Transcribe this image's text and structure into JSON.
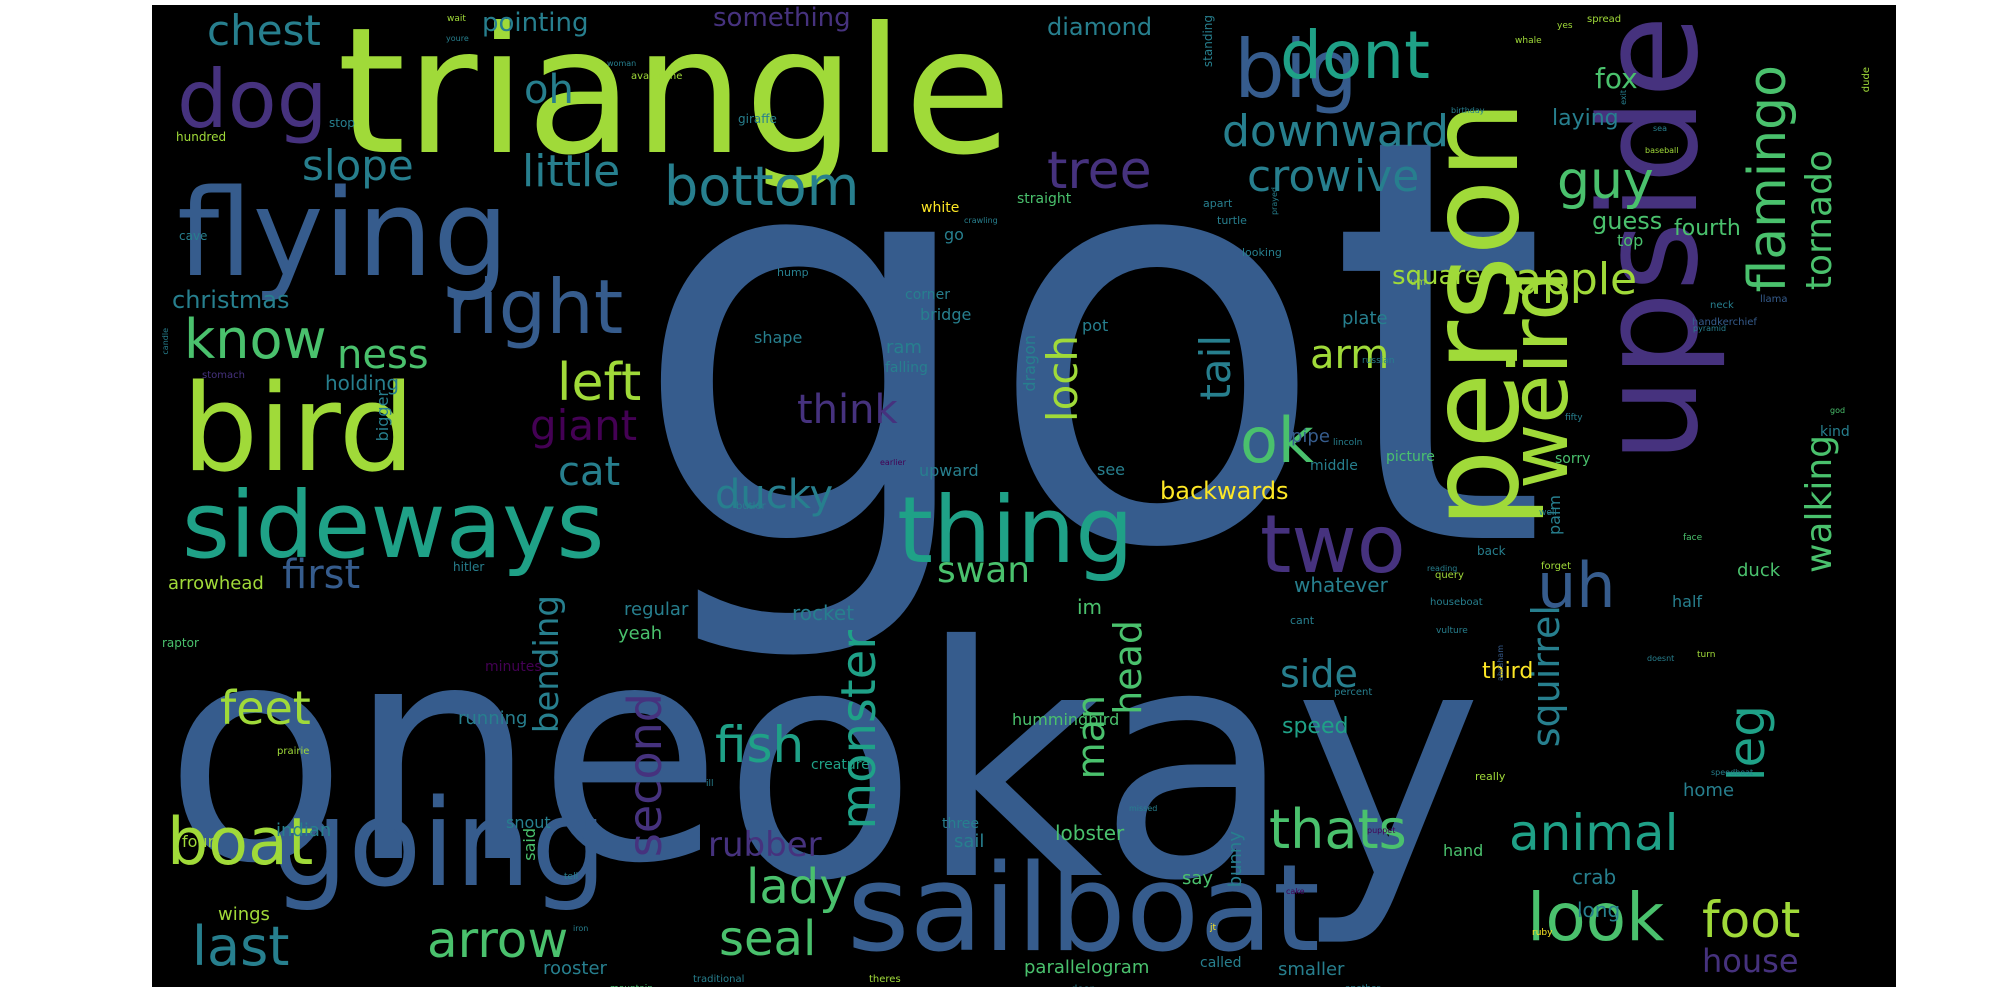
{
  "background_color": "#000000",
  "palette": [
    "#440154",
    "#46327e",
    "#365c8d",
    "#277f8e",
    "#1fa187",
    "#4ac16d",
    "#a0da39",
    "#fde725"
  ],
  "words": [
    {
      "text": "got",
      "color": "#365c8d"
    },
    {
      "text": "one",
      "color": "#365c8d"
    },
    {
      "text": "okay",
      "color": "#365c8d"
    },
    {
      "text": "triangle",
      "color": "#a0da39"
    },
    {
      "text": "upside",
      "color": "#46327e"
    },
    {
      "text": "person",
      "color": "#a0da39"
    },
    {
      "text": "flying",
      "color": "#365c8d"
    },
    {
      "text": "bird",
      "color": "#a0da39"
    },
    {
      "text": "sailboat",
      "color": "#365c8d"
    },
    {
      "text": "going",
      "color": "#365c8d"
    },
    {
      "text": "sideways",
      "color": "#1fa187"
    },
    {
      "text": "thing",
      "color": "#1fa187"
    },
    {
      "text": "dog",
      "color": "#46327e"
    },
    {
      "text": "big",
      "color": "#365c8d"
    },
    {
      "text": "weird",
      "color": "#a0da39"
    },
    {
      "text": "two",
      "color": "#46327e"
    },
    {
      "text": "right",
      "color": "#365c8d"
    },
    {
      "text": "boat",
      "color": "#a0da39"
    },
    {
      "text": "dont",
      "color": "#1fa187"
    },
    {
      "text": "uh",
      "color": "#365c8d"
    },
    {
      "text": "look",
      "color": "#4ac16d"
    },
    {
      "text": "know",
      "color": "#4ac16d"
    },
    {
      "text": "bottom",
      "color": "#277f8e"
    },
    {
      "text": "ok",
      "color": "#4ac16d"
    },
    {
      "text": "thats",
      "color": "#4ac16d"
    },
    {
      "text": "last",
      "color": "#277f8e"
    },
    {
      "text": "tree",
      "color": "#46327e"
    },
    {
      "text": "guy",
      "color": "#4ac16d"
    },
    {
      "text": "flamingo",
      "color": "#4ac16d"
    },
    {
      "text": "left",
      "color": "#a0da39"
    },
    {
      "text": "arrow",
      "color": "#4ac16d"
    },
    {
      "text": "animal",
      "color": "#1fa187"
    },
    {
      "text": "foot",
      "color": "#a0da39"
    },
    {
      "text": "leg",
      "color": "#1fa187"
    },
    {
      "text": "fish",
      "color": "#1fa187"
    },
    {
      "text": "lady",
      "color": "#4ac16d"
    },
    {
      "text": "seal",
      "color": "#4ac16d"
    },
    {
      "text": "monster",
      "color": "#1fa187"
    },
    {
      "text": "second",
      "color": "#46327e"
    },
    {
      "text": "feet",
      "color": "#a0da39"
    },
    {
      "text": "downward",
      "color": "#277f8e"
    },
    {
      "text": "crow",
      "color": "#277f8e"
    },
    {
      "text": "ive",
      "color": "#277f8e"
    },
    {
      "text": "apple",
      "color": "#a0da39"
    },
    {
      "text": "little",
      "color": "#277f8e"
    },
    {
      "text": "slope",
      "color": "#277f8e"
    },
    {
      "text": "chest",
      "color": "#277f8e"
    },
    {
      "text": "oh",
      "color": "#277f8e"
    },
    {
      "text": "tail",
      "color": "#277f8e"
    },
    {
      "text": "loch",
      "color": "#a0da39"
    },
    {
      "text": "ness",
      "color": "#4ac16d"
    },
    {
      "text": "arm",
      "color": "#a0da39"
    },
    {
      "text": "giant",
      "color": "#440154"
    },
    {
      "text": "think",
      "color": "#46327e"
    },
    {
      "text": "first",
      "color": "#365c8d"
    },
    {
      "text": "cat",
      "color": "#277f8e"
    },
    {
      "text": "ducky",
      "color": "#277f8e"
    },
    {
      "text": "swan",
      "color": "#4ac16d"
    },
    {
      "text": "side",
      "color": "#277f8e"
    },
    {
      "text": "head",
      "color": "#4ac16d"
    },
    {
      "text": "man",
      "color": "#4ac16d"
    },
    {
      "text": "squirrel",
      "color": "#277f8e"
    },
    {
      "text": "walking",
      "color": "#4ac16d"
    },
    {
      "text": "tornado",
      "color": "#4ac16d"
    },
    {
      "text": "rubber",
      "color": "#46327e"
    },
    {
      "text": "bending",
      "color": "#277f8e"
    },
    {
      "text": "house",
      "color": "#46327e"
    },
    {
      "text": "fox",
      "color": "#4ac16d"
    },
    {
      "text": "square",
      "color": "#a0da39"
    },
    {
      "text": "pointing",
      "color": "#277f8e"
    },
    {
      "text": "something",
      "color": "#46327e"
    },
    {
      "text": "diamond",
      "color": "#277f8e"
    },
    {
      "text": "christmas",
      "color": "#277f8e"
    },
    {
      "text": "guess",
      "color": "#4ac16d"
    },
    {
      "text": "fourth",
      "color": "#4ac16d"
    },
    {
      "text": "laying",
      "color": "#277f8e"
    },
    {
      "text": "third",
      "color": "#fde725"
    },
    {
      "text": "backwards",
      "color": "#fde725"
    },
    {
      "text": "speed",
      "color": "#1fa187"
    },
    {
      "text": "holding",
      "color": "#277f8e"
    },
    {
      "text": "arrowhead",
      "color": "#a0da39"
    },
    {
      "text": "yeah",
      "color": "#4ac16d"
    },
    {
      "text": "whatever",
      "color": "#277f8e"
    },
    {
      "text": "rocket",
      "color": "#277f8e"
    },
    {
      "text": "im",
      "color": "#4ac16d"
    },
    {
      "text": "running",
      "color": "#277f8e"
    },
    {
      "text": "lobster",
      "color": "#4ac16d"
    },
    {
      "text": "parallelogram",
      "color": "#4ac16d"
    },
    {
      "text": "bunny",
      "color": "#277f8e"
    },
    {
      "text": "crab",
      "color": "#277f8e"
    },
    {
      "text": "long",
      "color": "#277f8e"
    },
    {
      "text": "smaller",
      "color": "#277f8e"
    },
    {
      "text": "duck",
      "color": "#4ac16d"
    },
    {
      "text": "pipe",
      "color": "#365c8d"
    },
    {
      "text": "plate",
      "color": "#277f8e"
    },
    {
      "text": "home",
      "color": "#277f8e"
    },
    {
      "text": "rooster",
      "color": "#277f8e"
    },
    {
      "text": "regular",
      "color": "#277f8e"
    },
    {
      "text": "four",
      "color": "#a0da39"
    },
    {
      "text": "indian",
      "color": "#277f8e"
    },
    {
      "text": "wings",
      "color": "#a0da39"
    },
    {
      "text": "sail",
      "color": "#277f8e"
    },
    {
      "text": "say",
      "color": "#4ac16d"
    },
    {
      "text": "hand",
      "color": "#4ac16d"
    },
    {
      "text": "snout",
      "color": "#277f8e"
    },
    {
      "text": "said",
      "color": "#4ac16d"
    },
    {
      "text": "dragon",
      "color": "#277f8e"
    },
    {
      "text": "ram",
      "color": "#277f8e"
    },
    {
      "text": "pot",
      "color": "#277f8e"
    },
    {
      "text": "see",
      "color": "#277f8e"
    },
    {
      "text": "upward",
      "color": "#277f8e"
    },
    {
      "text": "palm",
      "color": "#277f8e"
    },
    {
      "text": "half",
      "color": "#277f8e"
    },
    {
      "text": "go",
      "color": "#277f8e"
    },
    {
      "text": "top",
      "color": "#4ac16d"
    },
    {
      "text": "shape",
      "color": "#277f8e"
    },
    {
      "text": "falling",
      "color": "#277f8e"
    },
    {
      "text": "bridge",
      "color": "#277f8e"
    },
    {
      "text": "corner",
      "color": "#277f8e"
    },
    {
      "text": "hummingbird",
      "color": "#4ac16d"
    },
    {
      "text": "creature",
      "color": "#1fa187"
    },
    {
      "text": "middle",
      "color": "#277f8e"
    },
    {
      "text": "picture",
      "color": "#4ac16d"
    },
    {
      "text": "bigger",
      "color": "#277f8e"
    },
    {
      "text": "sorry",
      "color": "#4ac16d"
    },
    {
      "text": "kind",
      "color": "#277f8e"
    },
    {
      "text": "straight",
      "color": "#4ac16d"
    },
    {
      "text": "white",
      "color": "#fde725"
    },
    {
      "text": "three",
      "color": "#277f8e"
    },
    {
      "text": "called",
      "color": "#277f8e"
    },
    {
      "text": "minutes",
      "color": "#440154"
    },
    {
      "text": "cave",
      "color": "#277f8e"
    },
    {
      "text": "hundred",
      "color": "#a0da39"
    },
    {
      "text": "stop",
      "color": "#277f8e"
    },
    {
      "text": "giraffe",
      "color": "#277f8e"
    },
    {
      "text": "avalanche",
      "color": "#a0da39"
    },
    {
      "text": "raptor",
      "color": "#4ac16d"
    },
    {
      "text": "hitler",
      "color": "#277f8e"
    },
    {
      "text": "stomach",
      "color": "#46327e"
    },
    {
      "text": "hump",
      "color": "#277f8e"
    },
    {
      "text": "prairie",
      "color": "#a0da39"
    },
    {
      "text": "mountain",
      "color": "#4ac16d"
    },
    {
      "text": "theres",
      "color": "#a0da39"
    },
    {
      "text": "traditional",
      "color": "#277f8e"
    },
    {
      "text": "door",
      "color": "#277f8e"
    },
    {
      "text": "another",
      "color": "#277f8e"
    },
    {
      "text": "cant",
      "color": "#277f8e"
    },
    {
      "text": "percent",
      "color": "#277f8e"
    },
    {
      "text": "really",
      "color": "#a0da39"
    },
    {
      "text": "houseboat",
      "color": "#277f8e"
    },
    {
      "text": "forget",
      "color": "#a0da39"
    },
    {
      "text": "back",
      "color": "#277f8e"
    },
    {
      "text": "looking",
      "color": "#277f8e"
    },
    {
      "text": "apart",
      "color": "#277f8e"
    },
    {
      "text": "turtle",
      "color": "#277f8e"
    },
    {
      "text": "standing",
      "color": "#277f8e"
    },
    {
      "text": "spread",
      "color": "#a0da39"
    },
    {
      "text": "dude",
      "color": "#a0da39"
    },
    {
      "text": "whale",
      "color": "#a0da39"
    },
    {
      "text": "yes",
      "color": "#a0da39"
    },
    {
      "text": "handkerchief",
      "color": "#365c8d"
    },
    {
      "text": "neck",
      "color": "#277f8e"
    },
    {
      "text": "pyramid",
      "color": "#277f8e"
    },
    {
      "text": "llama",
      "color": "#365c8d"
    },
    {
      "text": "russian",
      "color": "#277f8e"
    },
    {
      "text": "fifty",
      "color": "#277f8e"
    },
    {
      "text": "lincoln",
      "color": "#277f8e"
    },
    {
      "text": "god",
      "color": "#4ac16d"
    },
    {
      "text": "face",
      "color": "#4ac16d"
    },
    {
      "text": "baseball",
      "color": "#a0da39"
    },
    {
      "text": "birthday",
      "color": "#277f8e"
    },
    {
      "text": "speedboat",
      "color": "#277f8e"
    },
    {
      "text": "candle",
      "color": "#277f8e"
    },
    {
      "text": "vulture",
      "color": "#277f8e"
    },
    {
      "text": "reading",
      "color": "#277f8e"
    },
    {
      "text": "query",
      "color": "#a0da39"
    },
    {
      "text": "well",
      "color": "#277f8e"
    },
    {
      "text": "um",
      "color": "#a0da39"
    },
    {
      "text": "butler",
      "color": "#277f8e"
    },
    {
      "text": "earlier",
      "color": "#440154"
    },
    {
      "text": "missed",
      "color": "#277f8e"
    },
    {
      "text": "puppet",
      "color": "#440154"
    },
    {
      "text": "ruby",
      "color": "#fde725"
    },
    {
      "text": "cake",
      "color": "#440154"
    },
    {
      "text": "iron",
      "color": "#277f8e"
    },
    {
      "text": "tell",
      "color": "#277f8e"
    },
    {
      "text": "ill",
      "color": "#277f8e"
    },
    {
      "text": "sea",
      "color": "#277f8e"
    },
    {
      "text": "jt",
      "color": "#fde725"
    },
    {
      "text": "doesnt",
      "color": "#277f8e"
    },
    {
      "text": "turn",
      "color": "#a0da39"
    },
    {
      "text": "abraham",
      "color": "#365c8d"
    },
    {
      "text": "prayed",
      "color": "#277f8e"
    },
    {
      "text": "crawling",
      "color": "#277f8e"
    },
    {
      "text": "wait",
      "color": "#a0da39"
    },
    {
      "text": "youre",
      "color": "#277f8e"
    },
    {
      "text": "woman",
      "color": "#277f8e"
    },
    {
      "text": "exit",
      "color": "#277f8e"
    }
  ]
}
